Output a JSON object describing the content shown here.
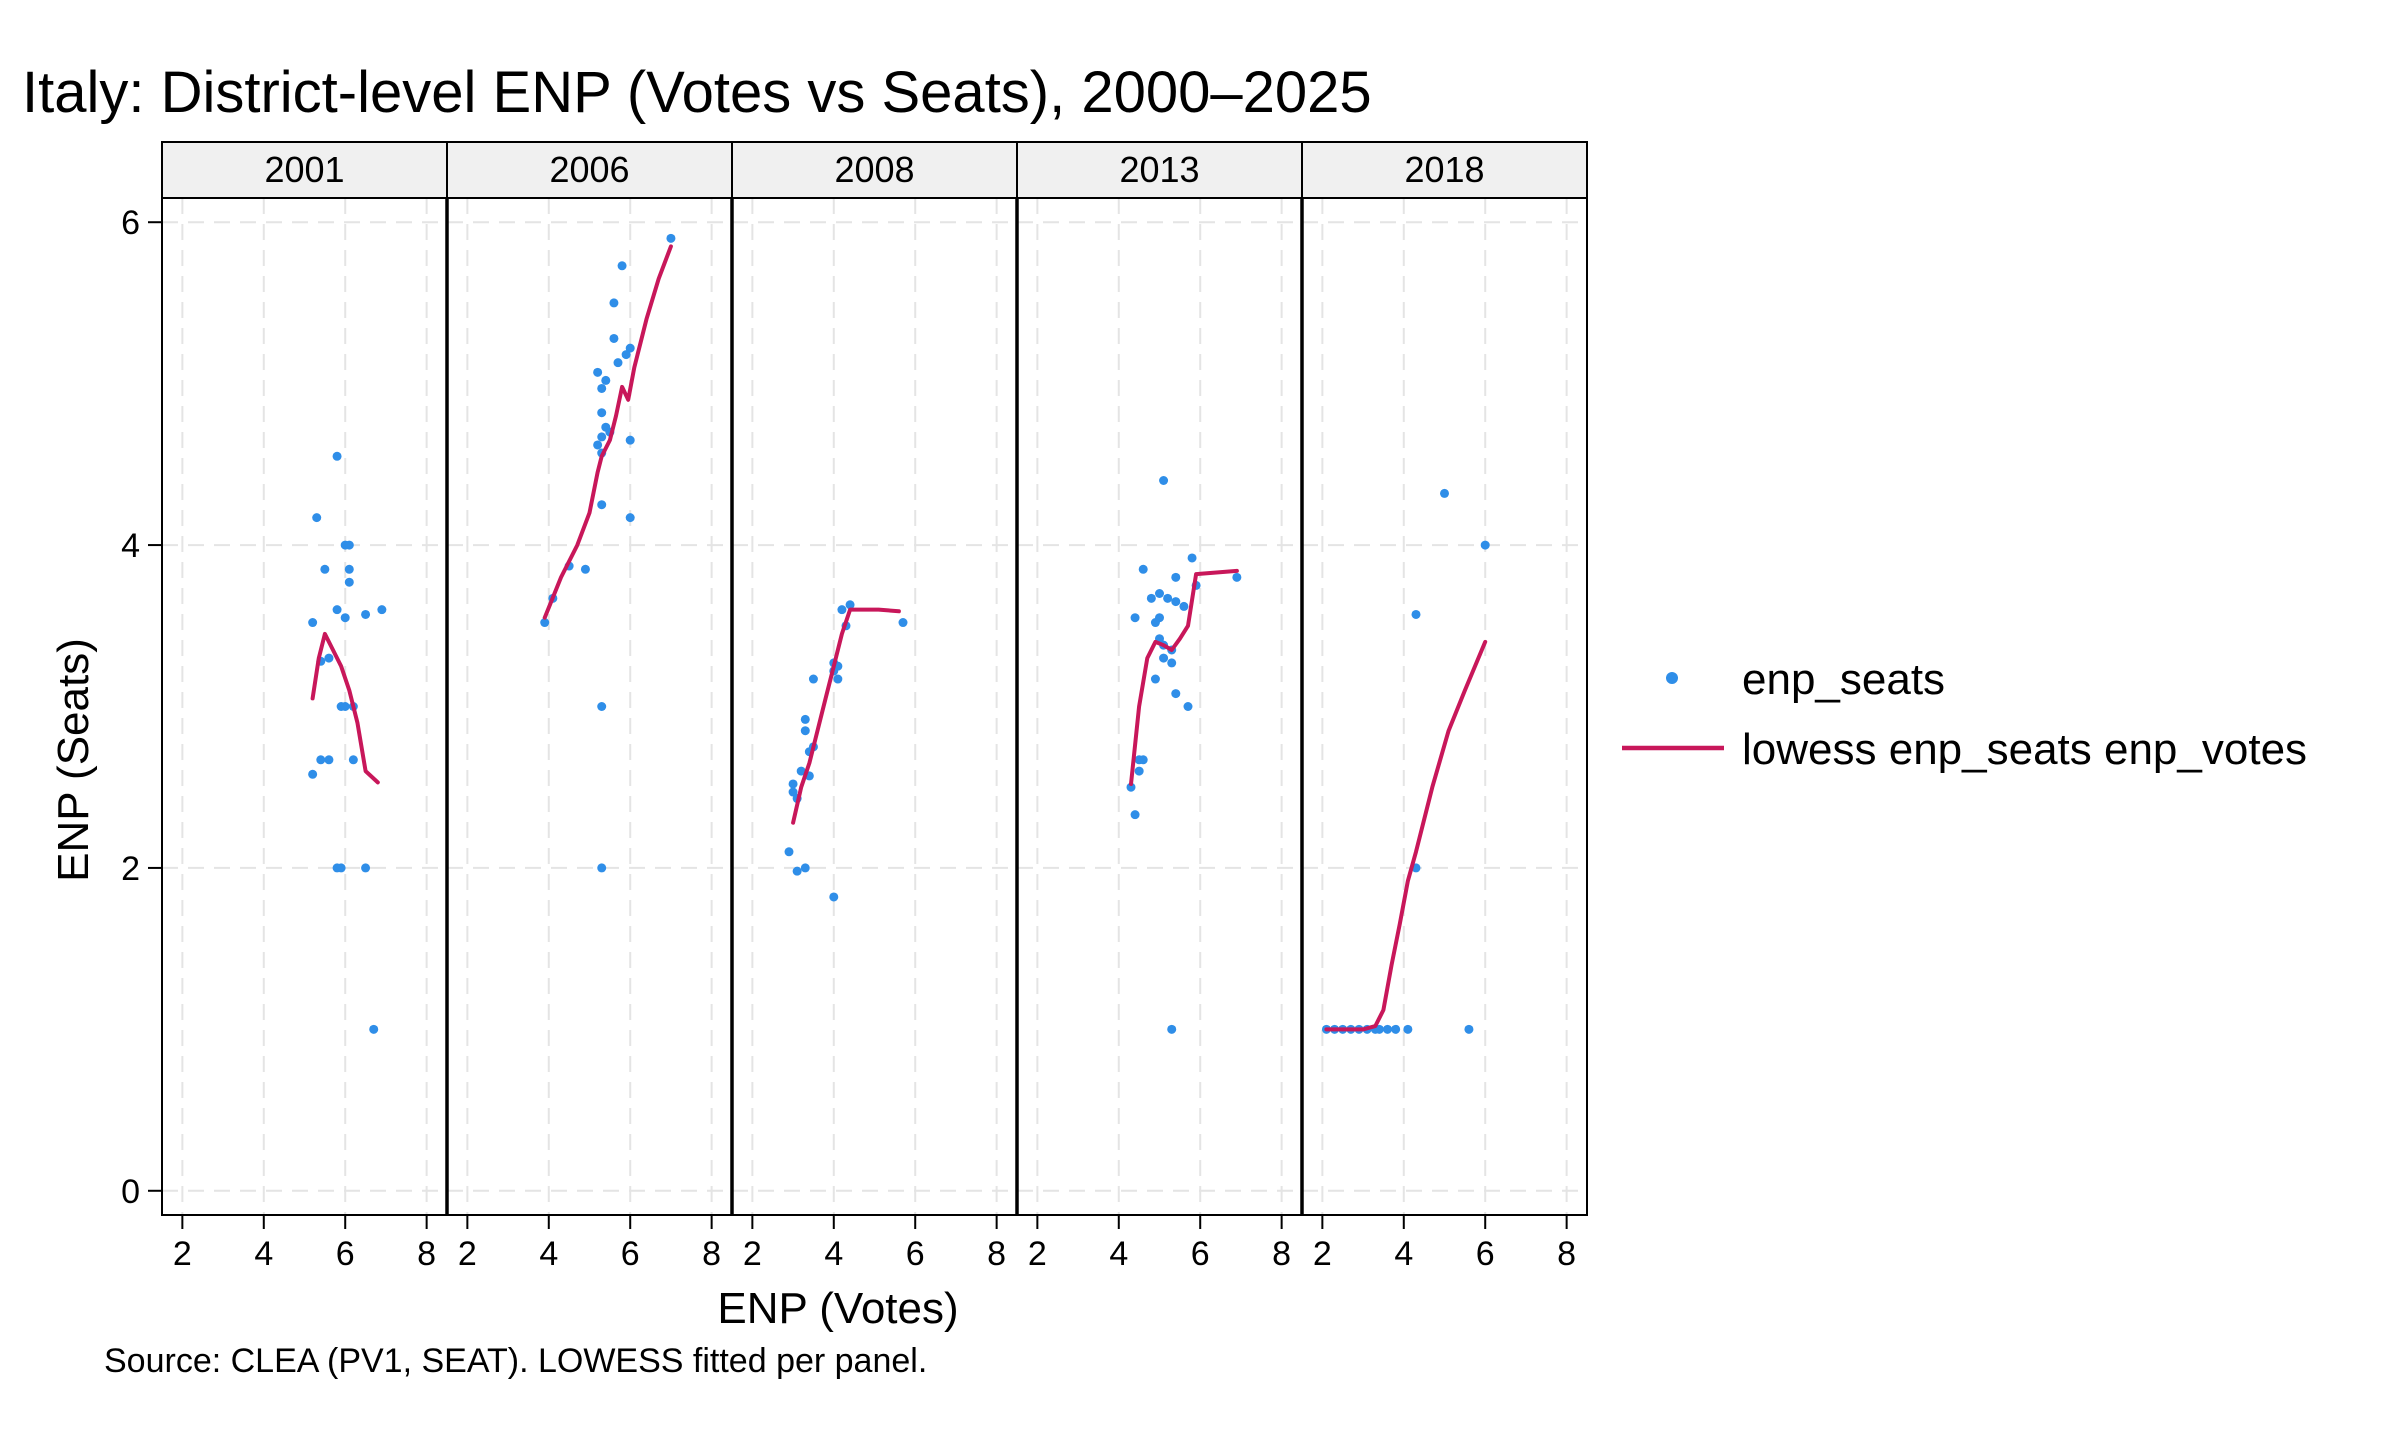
{
  "chart_data": {
    "type": "scatter",
    "title": "Italy: District-level ENP (Votes vs Seats), 2000–2025",
    "xlabel": "ENP (Votes)",
    "ylabel": "ENP (Seats)",
    "note": "Source: CLEA (PV1, SEAT). LOWESS fitted per panel.",
    "xlim": [
      1.5,
      8.5
    ],
    "ylim": [
      -0.15,
      6.15
    ],
    "xticks": [
      2,
      4,
      6,
      8
    ],
    "yticks": [
      0,
      2,
      4,
      6
    ],
    "grid": true,
    "legend_position": "right",
    "colors": {
      "points": "#2f8ee8",
      "line": "#c8175a",
      "strip": "#f0f0f0"
    },
    "series_labels": {
      "points": "enp_seats",
      "line": "lowess enp_seats enp_votes"
    },
    "panels": [
      {
        "label": "2001",
        "points": [
          [
            5.8,
            4.55
          ],
          [
            5.3,
            4.17
          ],
          [
            6.0,
            4.0
          ],
          [
            6.1,
            4.0
          ],
          [
            5.5,
            3.85
          ],
          [
            6.1,
            3.85
          ],
          [
            6.1,
            3.77
          ],
          [
            5.8,
            3.6
          ],
          [
            6.0,
            3.55
          ],
          [
            6.5,
            3.57
          ],
          [
            6.9,
            3.6
          ],
          [
            5.2,
            3.52
          ],
          [
            5.4,
            3.28
          ],
          [
            5.6,
            3.3
          ],
          [
            5.9,
            3.0
          ],
          [
            6.0,
            3.0
          ],
          [
            6.2,
            3.0
          ],
          [
            5.4,
            2.67
          ],
          [
            5.6,
            2.67
          ],
          [
            6.2,
            2.67
          ],
          [
            5.2,
            2.58
          ],
          [
            5.8,
            2.0
          ],
          [
            5.9,
            2.0
          ],
          [
            6.5,
            2.0
          ],
          [
            6.7,
            1.0
          ]
        ],
        "lowess": [
          [
            5.2,
            3.05
          ],
          [
            5.35,
            3.3
          ],
          [
            5.5,
            3.45
          ],
          [
            5.7,
            3.35
          ],
          [
            5.9,
            3.25
          ],
          [
            6.1,
            3.1
          ],
          [
            6.3,
            2.9
          ],
          [
            6.5,
            2.6
          ],
          [
            6.8,
            2.53
          ]
        ]
      },
      {
        "label": "2006",
        "points": [
          [
            7.0,
            5.9
          ],
          [
            5.8,
            5.73
          ],
          [
            5.6,
            5.5
          ],
          [
            5.6,
            5.28
          ],
          [
            5.9,
            5.18
          ],
          [
            6.0,
            5.22
          ],
          [
            5.7,
            5.13
          ],
          [
            5.2,
            5.07
          ],
          [
            5.4,
            5.02
          ],
          [
            5.3,
            4.97
          ],
          [
            5.3,
            4.82
          ],
          [
            5.4,
            4.73
          ],
          [
            5.5,
            4.7
          ],
          [
            5.3,
            4.67
          ],
          [
            5.2,
            4.62
          ],
          [
            5.3,
            4.57
          ],
          [
            6.0,
            4.65
          ],
          [
            5.3,
            4.25
          ],
          [
            6.0,
            4.17
          ],
          [
            4.5,
            3.87
          ],
          [
            4.9,
            3.85
          ],
          [
            4.1,
            3.67
          ],
          [
            3.9,
            3.52
          ],
          [
            5.3,
            3.0
          ],
          [
            5.3,
            2.0
          ]
        ],
        "lowess": [
          [
            3.9,
            3.55
          ],
          [
            4.3,
            3.8
          ],
          [
            4.7,
            4.0
          ],
          [
            5.0,
            4.2
          ],
          [
            5.2,
            4.45
          ],
          [
            5.3,
            4.55
          ],
          [
            5.5,
            4.65
          ],
          [
            5.65,
            4.8
          ],
          [
            5.8,
            4.98
          ],
          [
            5.95,
            4.9
          ],
          [
            6.1,
            5.1
          ],
          [
            6.4,
            5.4
          ],
          [
            6.7,
            5.65
          ],
          [
            7.0,
            5.85
          ]
        ]
      },
      {
        "label": "2008",
        "points": [
          [
            4.4,
            3.63
          ],
          [
            4.2,
            3.6
          ],
          [
            4.3,
            3.5
          ],
          [
            5.7,
            3.52
          ],
          [
            4.0,
            3.27
          ],
          [
            4.1,
            3.25
          ],
          [
            4.0,
            3.22
          ],
          [
            4.1,
            3.17
          ],
          [
            3.5,
            3.17
          ],
          [
            3.3,
            2.92
          ],
          [
            3.3,
            2.85
          ],
          [
            3.5,
            2.75
          ],
          [
            3.4,
            2.72
          ],
          [
            3.2,
            2.6
          ],
          [
            3.4,
            2.57
          ],
          [
            3.0,
            2.52
          ],
          [
            3.0,
            2.47
          ],
          [
            3.1,
            2.43
          ],
          [
            2.9,
            2.1
          ],
          [
            3.1,
            1.98
          ],
          [
            3.3,
            2.0
          ],
          [
            4.0,
            1.82
          ]
        ],
        "lowess": [
          [
            3.0,
            2.28
          ],
          [
            3.2,
            2.5
          ],
          [
            3.4,
            2.65
          ],
          [
            3.6,
            2.85
          ],
          [
            3.8,
            3.05
          ],
          [
            4.0,
            3.25
          ],
          [
            4.2,
            3.45
          ],
          [
            4.4,
            3.6
          ],
          [
            5.1,
            3.6
          ],
          [
            5.6,
            3.59
          ]
        ]
      },
      {
        "label": "2013",
        "points": [
          [
            5.1,
            4.4
          ],
          [
            5.8,
            3.92
          ],
          [
            4.6,
            3.85
          ],
          [
            6.9,
            3.8
          ],
          [
            5.4,
            3.8
          ],
          [
            5.9,
            3.75
          ],
          [
            5.0,
            3.7
          ],
          [
            4.8,
            3.67
          ],
          [
            5.2,
            3.67
          ],
          [
            5.4,
            3.65
          ],
          [
            5.6,
            3.62
          ],
          [
            4.4,
            3.55
          ],
          [
            5.0,
            3.55
          ],
          [
            4.9,
            3.52
          ],
          [
            5.0,
            3.42
          ],
          [
            5.1,
            3.38
          ],
          [
            5.3,
            3.35
          ],
          [
            5.1,
            3.3
          ],
          [
            5.3,
            3.27
          ],
          [
            4.9,
            3.17
          ],
          [
            5.4,
            3.08
          ],
          [
            5.7,
            3.0
          ],
          [
            4.5,
            2.67
          ],
          [
            4.6,
            2.67
          ],
          [
            4.5,
            2.6
          ],
          [
            4.3,
            2.5
          ],
          [
            4.4,
            2.33
          ],
          [
            5.3,
            1.0
          ]
        ],
        "lowess": [
          [
            4.3,
            2.52
          ],
          [
            4.5,
            3.0
          ],
          [
            4.7,
            3.3
          ],
          [
            4.9,
            3.4
          ],
          [
            5.1,
            3.38
          ],
          [
            5.3,
            3.35
          ],
          [
            5.5,
            3.42
          ],
          [
            5.7,
            3.5
          ],
          [
            5.9,
            3.82
          ],
          [
            6.9,
            3.84
          ]
        ]
      },
      {
        "label": "2018",
        "points": [
          [
            5.0,
            4.32
          ],
          [
            6.0,
            4.0
          ],
          [
            4.3,
            3.57
          ],
          [
            4.3,
            2.0
          ],
          [
            2.1,
            1.0
          ],
          [
            2.3,
            1.0
          ],
          [
            2.5,
            1.0
          ],
          [
            2.7,
            1.0
          ],
          [
            2.9,
            1.0
          ],
          [
            3.1,
            1.0
          ],
          [
            3.3,
            1.0
          ],
          [
            3.4,
            1.0
          ],
          [
            3.6,
            1.0
          ],
          [
            3.8,
            1.0
          ],
          [
            4.1,
            1.0
          ],
          [
            5.6,
            1.0
          ]
        ],
        "lowess": [
          [
            2.1,
            1.0
          ],
          [
            2.5,
            1.0
          ],
          [
            3.0,
            1.0
          ],
          [
            3.3,
            1.02
          ],
          [
            3.5,
            1.12
          ],
          [
            3.7,
            1.4
          ],
          [
            3.9,
            1.65
          ],
          [
            4.1,
            1.92
          ],
          [
            4.3,
            2.1
          ],
          [
            4.7,
            2.5
          ],
          [
            5.1,
            2.85
          ],
          [
            5.5,
            3.1
          ],
          [
            6.0,
            3.4
          ]
        ]
      }
    ]
  }
}
